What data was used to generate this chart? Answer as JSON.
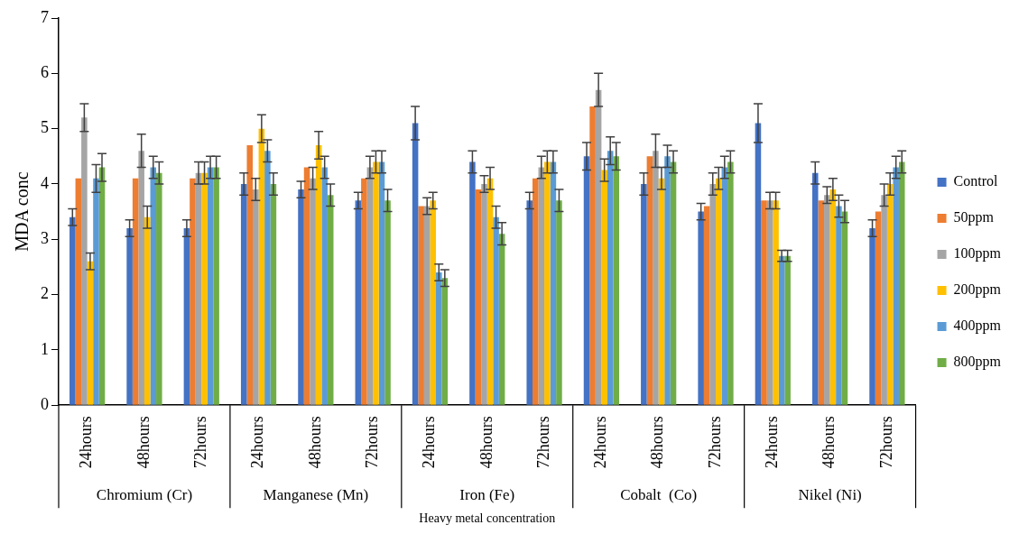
{
  "chart_data": {
    "type": "bar",
    "xlabel": "Heavy metal concentration",
    "ylabel": "MDA conc",
    "categories": [
      "24hours",
      "48hours",
      "72hours",
      "24hours",
      "48hours",
      "72hours",
      "24hours",
      "48hours",
      "72hours",
      "24hours",
      "48hours",
      "72hours",
      "24hours",
      "48hours",
      "72hours"
    ],
    "annotations": [
      "Chromium (Cr)",
      "Manganese (Mn)",
      "Iron (Fe)",
      "Cobalt  (Co)",
      "Nikel (Ni)"
    ],
    "ylim": [
      0,
      7
    ],
    "yticks": [
      0,
      1,
      2,
      3,
      4,
      5,
      6,
      7
    ],
    "legend": "right",
    "series": [
      {
        "name": "Control",
        "color": "#4472c4",
        "values": [
          3.4,
          3.2,
          3.2,
          4.0,
          3.9,
          3.7,
          5.1,
          4.4,
          3.7,
          4.5,
          4.0,
          3.5,
          5.1,
          4.2,
          3.2
        ],
        "errors": [
          0.15,
          0.15,
          0.15,
          0.2,
          0.15,
          0.15,
          0.3,
          0.2,
          0.15,
          0.25,
          0.2,
          0.15,
          0.35,
          0.2,
          0.15
        ]
      },
      {
        "name": "50ppm",
        "color": "#ed7d31",
        "values": [
          4.1,
          4.1,
          4.1,
          4.7,
          4.3,
          4.1,
          3.6,
          3.9,
          4.1,
          5.4,
          4.5,
          3.6,
          3.7,
          3.7,
          3.5
        ]
      },
      {
        "name": "100ppm",
        "color": "#a5a5a5",
        "values": [
          5.2,
          4.6,
          4.2,
          3.9,
          4.1,
          4.3,
          3.6,
          4.0,
          4.3,
          5.7,
          4.6,
          4.0,
          3.7,
          3.8,
          3.8
        ],
        "errors": [
          0.25,
          0.3,
          0.2,
          0.2,
          0.2,
          0.2,
          0.15,
          0.15,
          0.2,
          0.3,
          0.3,
          0.2,
          0.15,
          0.15,
          0.2
        ]
      },
      {
        "name": "200ppm",
        "color": "#ffc000",
        "values": [
          2.6,
          3.4,
          4.2,
          5.0,
          4.7,
          4.4,
          3.7,
          4.1,
          4.4,
          4.25,
          4.1,
          4.1,
          3.7,
          3.9,
          4.0
        ],
        "errors": [
          0.15,
          0.2,
          0.2,
          0.25,
          0.25,
          0.2,
          0.15,
          0.2,
          0.2,
          0.2,
          0.2,
          0.2,
          0.15,
          0.2,
          0.2
        ]
      },
      {
        "name": "400ppm",
        "color": "#5b9bd5",
        "values": [
          4.1,
          4.3,
          4.3,
          4.6,
          4.3,
          4.4,
          2.4,
          3.4,
          4.4,
          4.6,
          4.5,
          4.3,
          2.7,
          3.6,
          4.3
        ],
        "errors": [
          0.25,
          0.2,
          0.2,
          0.2,
          0.2,
          0.2,
          0.15,
          0.2,
          0.2,
          0.25,
          0.2,
          0.2,
          0.1,
          0.2,
          0.2
        ]
      },
      {
        "name": "800ppm",
        "color": "#70ad47",
        "values": [
          4.3,
          4.2,
          4.3,
          4.0,
          3.8,
          3.7,
          2.3,
          3.1,
          3.7,
          4.5,
          4.4,
          4.4,
          2.7,
          3.5,
          4.4
        ],
        "errors": [
          0.25,
          0.2,
          0.2,
          0.2,
          0.2,
          0.2,
          0.15,
          0.2,
          0.2,
          0.25,
          0.2,
          0.2,
          0.1,
          0.2,
          0.2
        ]
      }
    ]
  }
}
